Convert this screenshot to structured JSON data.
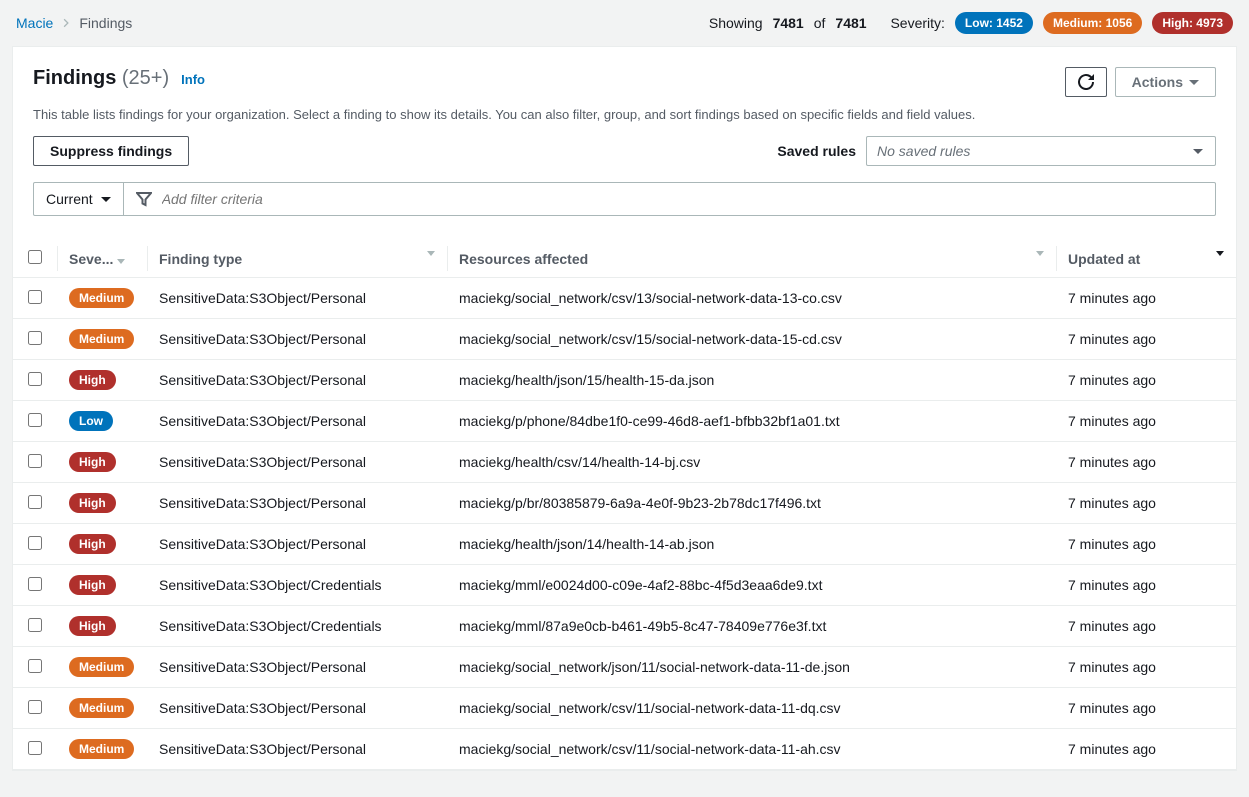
{
  "breadcrumb": {
    "root": "Macie",
    "current": "Findings"
  },
  "stats": {
    "showing_label": "Showing",
    "showing_count": "7481",
    "of_label": "of",
    "total_count": "7481",
    "severity_label": "Severity:",
    "low_label": "Low: 1452",
    "medium_label": "Medium: 1056",
    "high_label": "High: 4973"
  },
  "header": {
    "title": "Findings",
    "count": "(25+)",
    "info_link": "Info",
    "refresh_aria": "Refresh",
    "actions_label": "Actions"
  },
  "description": "This table lists findings for your organization. Select a finding to show its details. You can also filter, group, and sort findings based on specific fields and field values.",
  "toolbar": {
    "suppress_label": "Suppress findings",
    "saved_rules_label": "Saved rules",
    "saved_rules_value": "No saved rules"
  },
  "filter": {
    "scope": "Current",
    "placeholder": "Add filter criteria"
  },
  "columns": {
    "severity": "Seve...",
    "finding_type": "Finding type",
    "resources": "Resources affected",
    "updated": "Updated at"
  },
  "severity_colors": {
    "Low": "#0073bb",
    "Medium": "#dd6b20",
    "High": "#b0302c"
  },
  "rows": [
    {
      "severity": "Medium",
      "type": "SensitiveData:S3Object/Personal",
      "resource": "maciekg/social_network/csv/13/social-network-data-13-co.csv",
      "updated": "7 minutes ago"
    },
    {
      "severity": "Medium",
      "type": "SensitiveData:S3Object/Personal",
      "resource": "maciekg/social_network/csv/15/social-network-data-15-cd.csv",
      "updated": "7 minutes ago"
    },
    {
      "severity": "High",
      "type": "SensitiveData:S3Object/Personal",
      "resource": "maciekg/health/json/15/health-15-da.json",
      "updated": "7 minutes ago"
    },
    {
      "severity": "Low",
      "type": "SensitiveData:S3Object/Personal",
      "resource": "maciekg/p/phone/84dbe1f0-ce99-46d8-aef1-bfbb32bf1a01.txt",
      "updated": "7 minutes ago"
    },
    {
      "severity": "High",
      "type": "SensitiveData:S3Object/Personal",
      "resource": "maciekg/health/csv/14/health-14-bj.csv",
      "updated": "7 minutes ago"
    },
    {
      "severity": "High",
      "type": "SensitiveData:S3Object/Personal",
      "resource": "maciekg/p/br/80385879-6a9a-4e0f-9b23-2b78dc17f496.txt",
      "updated": "7 minutes ago"
    },
    {
      "severity": "High",
      "type": "SensitiveData:S3Object/Personal",
      "resource": "maciekg/health/json/14/health-14-ab.json",
      "updated": "7 minutes ago"
    },
    {
      "severity": "High",
      "type": "SensitiveData:S3Object/Credentials",
      "resource": "maciekg/mml/e0024d00-c09e-4af2-88bc-4f5d3eaa6de9.txt",
      "updated": "7 minutes ago"
    },
    {
      "severity": "High",
      "type": "SensitiveData:S3Object/Credentials",
      "resource": "maciekg/mml/87a9e0cb-b461-49b5-8c47-78409e776e3f.txt",
      "updated": "7 minutes ago"
    },
    {
      "severity": "Medium",
      "type": "SensitiveData:S3Object/Personal",
      "resource": "maciekg/social_network/json/11/social-network-data-11-de.json",
      "updated": "7 minutes ago"
    },
    {
      "severity": "Medium",
      "type": "SensitiveData:S3Object/Personal",
      "resource": "maciekg/social_network/csv/11/social-network-data-11-dq.csv",
      "updated": "7 minutes ago"
    },
    {
      "severity": "Medium",
      "type": "SensitiveData:S3Object/Personal",
      "resource": "maciekg/social_network/csv/11/social-network-data-11-ah.csv",
      "updated": "7 minutes ago"
    }
  ]
}
